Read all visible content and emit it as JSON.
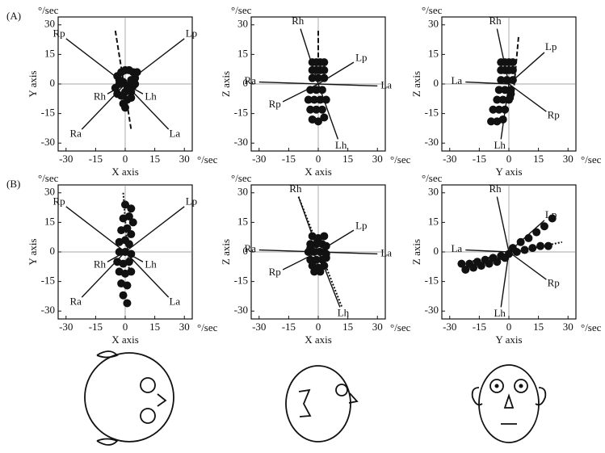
{
  "chart_data": [
    {
      "type": "scatter",
      "panel_label": "(A)",
      "xlabel": "X axis",
      "ylabel": "Y axis",
      "x_unit": "°/sec",
      "y_unit": "°/sec",
      "xlim": [
        -34,
        34
      ],
      "ylim": [
        -34,
        34
      ],
      "xticks": [
        -30,
        -15,
        0,
        15,
        30
      ],
      "yticks": [
        -30,
        -15,
        0,
        15,
        30
      ],
      "zero_lines": true,
      "color": "#111111",
      "x": [
        -4,
        -2,
        0,
        2,
        4,
        6,
        -3,
        -1,
        1,
        3,
        5,
        -4,
        -2,
        0,
        2,
        4,
        -1,
        1,
        3,
        0,
        -5,
        5,
        -3,
        3
      ],
      "y": [
        4,
        6,
        7,
        7,
        6,
        6,
        0,
        1,
        -1,
        2,
        3,
        -5,
        -6,
        -4,
        -3,
        -1,
        -10,
        -8,
        -7,
        -12,
        -2,
        0,
        2,
        -4
      ],
      "planes": [
        {
          "name": "Rp",
          "x": [
            0,
            -30
          ],
          "y": [
            0,
            23
          ]
        },
        {
          "name": "Lp",
          "x": [
            0,
            30
          ],
          "y": [
            0,
            23
          ]
        },
        {
          "name": "Ra",
          "x": [
            0,
            -22
          ],
          "y": [
            0,
            -23
          ]
        },
        {
          "name": "La",
          "x": [
            0,
            22
          ],
          "y": [
            0,
            -23
          ]
        },
        {
          "name": "Rh",
          "x": [
            0,
            -9
          ],
          "y": [
            0,
            -5
          ]
        },
        {
          "name": "Lh",
          "x": [
            0,
            9
          ],
          "y": [
            0,
            -5
          ]
        }
      ],
      "rotation_axis": {
        "x": [
          -5,
          3
        ],
        "y": [
          27,
          -23
        ],
        "style": "dashed"
      }
    },
    {
      "type": "scatter",
      "xlabel": "X axis",
      "ylabel": "Z axis",
      "x_unit": "°/sec",
      "y_unit": "°/sec",
      "xlim": [
        -34,
        34
      ],
      "ylim": [
        -34,
        34
      ],
      "xticks": [
        -30,
        -15,
        0,
        15,
        30
      ],
      "yticks": [
        -30,
        -15,
        0,
        15,
        30
      ],
      "zero_lines": true,
      "color": "#111111",
      "x": [
        -3,
        -1,
        1,
        3,
        -3,
        -1,
        1,
        3,
        -3,
        0,
        3,
        -4,
        -1,
        2,
        -5,
        -2,
        1,
        4,
        -4,
        -1,
        2,
        -3,
        0,
        3
      ],
      "y": [
        11,
        11,
        11,
        11,
        7,
        7,
        7,
        7,
        3,
        3,
        3,
        -3,
        -3,
        -3,
        -8,
        -8,
        -8,
        -8,
        -13,
        -13,
        -13,
        -18,
        -19,
        -17
      ],
      "planes": [
        {
          "name": "Rh",
          "x": [
            0,
            -9
          ],
          "y": [
            0,
            28
          ]
        },
        {
          "name": "Lh",
          "x": [
            0,
            10
          ],
          "y": [
            0,
            -28
          ]
        },
        {
          "name": "Lp",
          "x": [
            0,
            18
          ],
          "y": [
            0,
            11
          ]
        },
        {
          "name": "Rp",
          "x": [
            0,
            -18
          ],
          "y": [
            0,
            -9
          ]
        },
        {
          "name": "Ra",
          "x": [
            0,
            -30
          ],
          "y": [
            0,
            1
          ]
        },
        {
          "name": "La",
          "x": [
            0,
            30
          ],
          "y": [
            0,
            -1
          ]
        }
      ],
      "rotation_axis": {
        "x": [
          0,
          0
        ],
        "y": [
          27,
          10
        ],
        "style": "dashed"
      }
    },
    {
      "type": "scatter",
      "xlabel": "Y axis",
      "ylabel": "Z axis",
      "x_unit": "°/sec",
      "y_unit": "°/sec",
      "xlim": [
        -34,
        34
      ],
      "ylim": [
        -34,
        34
      ],
      "xticks": [
        -30,
        -15,
        0,
        15,
        30
      ],
      "yticks": [
        -30,
        -15,
        0,
        15,
        30
      ],
      "zero_lines": true,
      "color": "#111111",
      "x": [
        -4,
        -2,
        0,
        2,
        -4,
        -2,
        0,
        2,
        -4,
        -1,
        2,
        -5,
        -2,
        1,
        -6,
        -3,
        0,
        -8,
        -5,
        -2,
        -9,
        -6,
        -3,
        1
      ],
      "y": [
        11,
        11,
        11,
        11,
        7,
        7,
        7,
        7,
        2,
        2,
        2,
        -3,
        -3,
        -3,
        -8,
        -8,
        -8,
        -13,
        -13,
        -13,
        -19,
        -19,
        -18,
        -5
      ],
      "planes": [
        {
          "name": "Rh",
          "x": [
            0,
            -6
          ],
          "y": [
            0,
            28
          ]
        },
        {
          "name": "Lh",
          "x": [
            0,
            -4
          ],
          "y": [
            0,
            -28
          ]
        },
        {
          "name": "Lp",
          "x": [
            0,
            18
          ],
          "y": [
            0,
            16
          ]
        },
        {
          "name": "Rp",
          "x": [
            0,
            19
          ],
          "y": [
            0,
            -14
          ]
        },
        {
          "name": "La",
          "x": [
            0,
            -22
          ],
          "y": [
            0,
            1
          ]
        }
      ],
      "rotation_axis": {
        "x": [
          2,
          5
        ],
        "y": [
          -8,
          25
        ],
        "style": "dashed"
      }
    },
    {
      "type": "scatter",
      "panel_label": "(B)",
      "xlabel": "X axis",
      "ylabel": "Y axis",
      "x_unit": "°/sec",
      "y_unit": "°/sec",
      "xlim": [
        -34,
        34
      ],
      "ylim": [
        -34,
        34
      ],
      "xticks": [
        -30,
        -15,
        0,
        15,
        30
      ],
      "yticks": [
        -30,
        -15,
        0,
        15,
        30
      ],
      "zero_lines": true,
      "color": "#111111",
      "x": [
        0,
        3,
        -1,
        2,
        4,
        -2,
        1,
        3,
        -3,
        0,
        2,
        -3,
        0,
        3,
        -4,
        -1,
        2,
        -3,
        0,
        3,
        -2,
        1,
        -1,
        1
      ],
      "y": [
        24,
        22,
        17,
        18,
        15,
        11,
        12,
        9,
        5,
        6,
        4,
        0,
        0,
        -1,
        -5,
        -6,
        -5,
        -10,
        -11,
        -10,
        -16,
        -17,
        -22,
        -26
      ],
      "planes": [
        {
          "name": "Rp",
          "x": [
            0,
            -30
          ],
          "y": [
            0,
            23
          ]
        },
        {
          "name": "Lp",
          "x": [
            0,
            30
          ],
          "y": [
            0,
            23
          ]
        },
        {
          "name": "Ra",
          "x": [
            0,
            -22
          ],
          "y": [
            0,
            -23
          ]
        },
        {
          "name": "La",
          "x": [
            0,
            22
          ],
          "y": [
            0,
            -23
          ]
        },
        {
          "name": "Rh",
          "x": [
            0,
            -9
          ],
          "y": [
            0,
            -5
          ]
        },
        {
          "name": "Lh",
          "x": [
            0,
            9
          ],
          "y": [
            0,
            -5
          ]
        }
      ],
      "rotation_axis": {
        "x": [
          -1,
          2
        ],
        "y": [
          30,
          -10
        ],
        "style": "dotted"
      }
    },
    {
      "type": "scatter",
      "xlabel": "X axis",
      "ylabel": "Z axis",
      "x_unit": "°/sec",
      "y_unit": "°/sec",
      "xlim": [
        -34,
        34
      ],
      "ylim": [
        -34,
        34
      ],
      "xticks": [
        -30,
        -15,
        0,
        15,
        30
      ],
      "yticks": [
        -30,
        -15,
        0,
        15,
        30
      ],
      "zero_lines": true,
      "color": "#111111",
      "x": [
        -3,
        0,
        3,
        -4,
        -1,
        2,
        4,
        -5,
        -2,
        1,
        3,
        -4,
        -1,
        2,
        4,
        -3,
        0,
        3,
        -2,
        1,
        -4,
        4
      ],
      "y": [
        8,
        7,
        8,
        4,
        4,
        4,
        3,
        0,
        0,
        0,
        0,
        -4,
        -4,
        -4,
        -3,
        -7,
        -8,
        -7,
        -10,
        -10,
        2,
        -1
      ],
      "planes": [
        {
          "name": "Rh",
          "x": [
            0,
            -10
          ],
          "y": [
            0,
            28
          ]
        },
        {
          "name": "Lh",
          "x": [
            0,
            11
          ],
          "y": [
            0,
            -28
          ]
        },
        {
          "name": "Lp",
          "x": [
            0,
            18
          ],
          "y": [
            0,
            11
          ]
        },
        {
          "name": "Rp",
          "x": [
            0,
            -18
          ],
          "y": [
            0,
            -9
          ]
        },
        {
          "name": "Ra",
          "x": [
            0,
            -30
          ],
          "y": [
            0,
            1
          ]
        },
        {
          "name": "La",
          "x": [
            0,
            30
          ],
          "y": [
            0,
            -1
          ]
        }
      ],
      "rotation_axis": {
        "x": [
          -10,
          12
        ],
        "y": [
          28,
          -28
        ],
        "style": "dotted"
      }
    },
    {
      "type": "scatter",
      "xlabel": "Y axis",
      "ylabel": "Z axis",
      "x_unit": "°/sec",
      "y_unit": "°/sec",
      "xlim": [
        -34,
        34
      ],
      "ylim": [
        -34,
        34
      ],
      "xticks": [
        -30,
        -15,
        0,
        15,
        30
      ],
      "yticks": [
        -30,
        -15,
        0,
        15,
        30
      ],
      "zero_lines": true,
      "color": "#111111",
      "x": [
        -24,
        -20,
        -16,
        -12,
        -8,
        -4,
        0,
        4,
        8,
        12,
        16,
        20,
        -22,
        -18,
        -14,
        -10,
        -6,
        -2,
        2,
        6,
        10,
        14,
        18,
        22
      ],
      "y": [
        -6,
        -6,
        -5,
        -4,
        -3,
        -2,
        -1,
        0,
        1,
        2,
        3,
        3,
        -9,
        -8,
        -7,
        -6,
        -5,
        -3,
        2,
        5,
        7,
        10,
        13,
        17
      ],
      "planes": [
        {
          "name": "Rh",
          "x": [
            0,
            -6
          ],
          "y": [
            0,
            28
          ]
        },
        {
          "name": "Lh",
          "x": [
            0,
            -4
          ],
          "y": [
            0,
            -28
          ]
        },
        {
          "name": "Lp",
          "x": [
            0,
            18
          ],
          "y": [
            0,
            16
          ]
        },
        {
          "name": "Rp",
          "x": [
            0,
            19
          ],
          "y": [
            0,
            -14
          ]
        },
        {
          "name": "La",
          "x": [
            0,
            -22
          ],
          "y": [
            0,
            1
          ]
        }
      ],
      "rotation_axis": {
        "x": [
          -20,
          27
        ],
        "y": [
          -5,
          5
        ],
        "style": "dotted"
      }
    }
  ]
}
